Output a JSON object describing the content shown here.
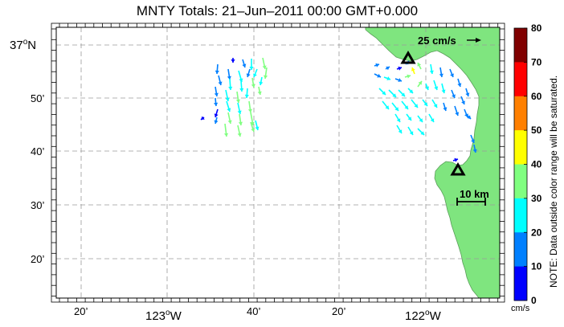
{
  "title": "MNTY Totals: 21–Jun–2011 00:00 GMT+0.000",
  "y_axis": {
    "ticks": [
      {
        "text": "37",
        "deg": "o",
        "hem": "N"
      },
      {
        "text": "50’"
      },
      {
        "text": "40’"
      },
      {
        "text": "30’"
      },
      {
        "text": "20’"
      }
    ]
  },
  "x_axis": {
    "ticks": [
      {
        "text": "20’"
      },
      {
        "text": "123",
        "deg": "o",
        "hem": "W"
      },
      {
        "text": "40’"
      },
      {
        "text": "20’"
      },
      {
        "text": "122",
        "deg": "o",
        "hem": "W"
      }
    ]
  },
  "scale_arrow_label": "25 cm/s",
  "scale_bar_label": "10 km",
  "colorbar": {
    "ticks": [
      "80",
      "70",
      "60",
      "50",
      "40",
      "30",
      "20",
      "10",
      "0"
    ],
    "unit": "cm/s",
    "colors": [
      "#800000",
      "#ff0000",
      "#ff8000",
      "#ffff00",
      "#80ff80",
      "#00ffff",
      "#0080ff",
      "#0000ff"
    ],
    "note": "NOTE: Data outside color range will be saturated."
  },
  "colors": {
    "land": "#7fe57f",
    "grid": "#9a9a9a"
  },
  "sites": [
    {
      "name": "site-north",
      "icon": "triangle-site-icon"
    },
    {
      "name": "site-south",
      "icon": "triangle-site-icon"
    }
  ]
}
